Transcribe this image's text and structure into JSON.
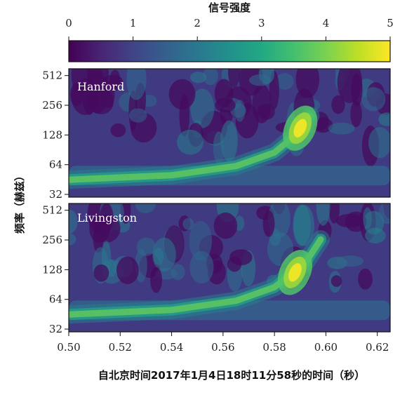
{
  "chart_data": {
    "type": "heatmap",
    "colormap": "viridis",
    "colorbar": {
      "label": "信号强度",
      "range": [
        0,
        5
      ],
      "ticks": [
        0,
        1,
        2,
        3,
        4,
        5
      ],
      "placement": "top"
    },
    "xlabel": "自北京时间2017年1月4日18时11分58秒的时间（秒）",
    "ylabel": "频率（赫兹）",
    "xlim": [
      0.5,
      0.625
    ],
    "xticks": [
      "0.50",
      "0.52",
      "0.54",
      "0.56",
      "0.58",
      "0.60",
      "0.62"
    ],
    "yscale": "log",
    "ylim": [
      30,
      600
    ],
    "yticks": [
      "32",
      "64",
      "128",
      "256",
      "512"
    ],
    "panels": [
      {
        "label": "Hanford",
        "peak": {
          "time": 0.59,
          "frequency": 150,
          "intensity": 5.0
        },
        "chirp": [
          {
            "time": 0.5,
            "frequency": 45
          },
          {
            "time": 0.54,
            "frequency": 50
          },
          {
            "time": 0.565,
            "frequency": 62
          },
          {
            "time": 0.58,
            "frequency": 85
          },
          {
            "time": 0.59,
            "frequency": 140
          },
          {
            "time": 0.594,
            "frequency": 200
          }
        ]
      },
      {
        "label": "Livingston",
        "peak": {
          "time": 0.588,
          "frequency": 120,
          "intensity": 5.0
        },
        "chirp": [
          {
            "time": 0.5,
            "frequency": 45
          },
          {
            "time": 0.54,
            "frequency": 50
          },
          {
            "time": 0.565,
            "frequency": 62
          },
          {
            "time": 0.58,
            "frequency": 85
          },
          {
            "time": 0.592,
            "frequency": 150
          },
          {
            "time": 0.598,
            "frequency": 260
          }
        ]
      }
    ]
  }
}
